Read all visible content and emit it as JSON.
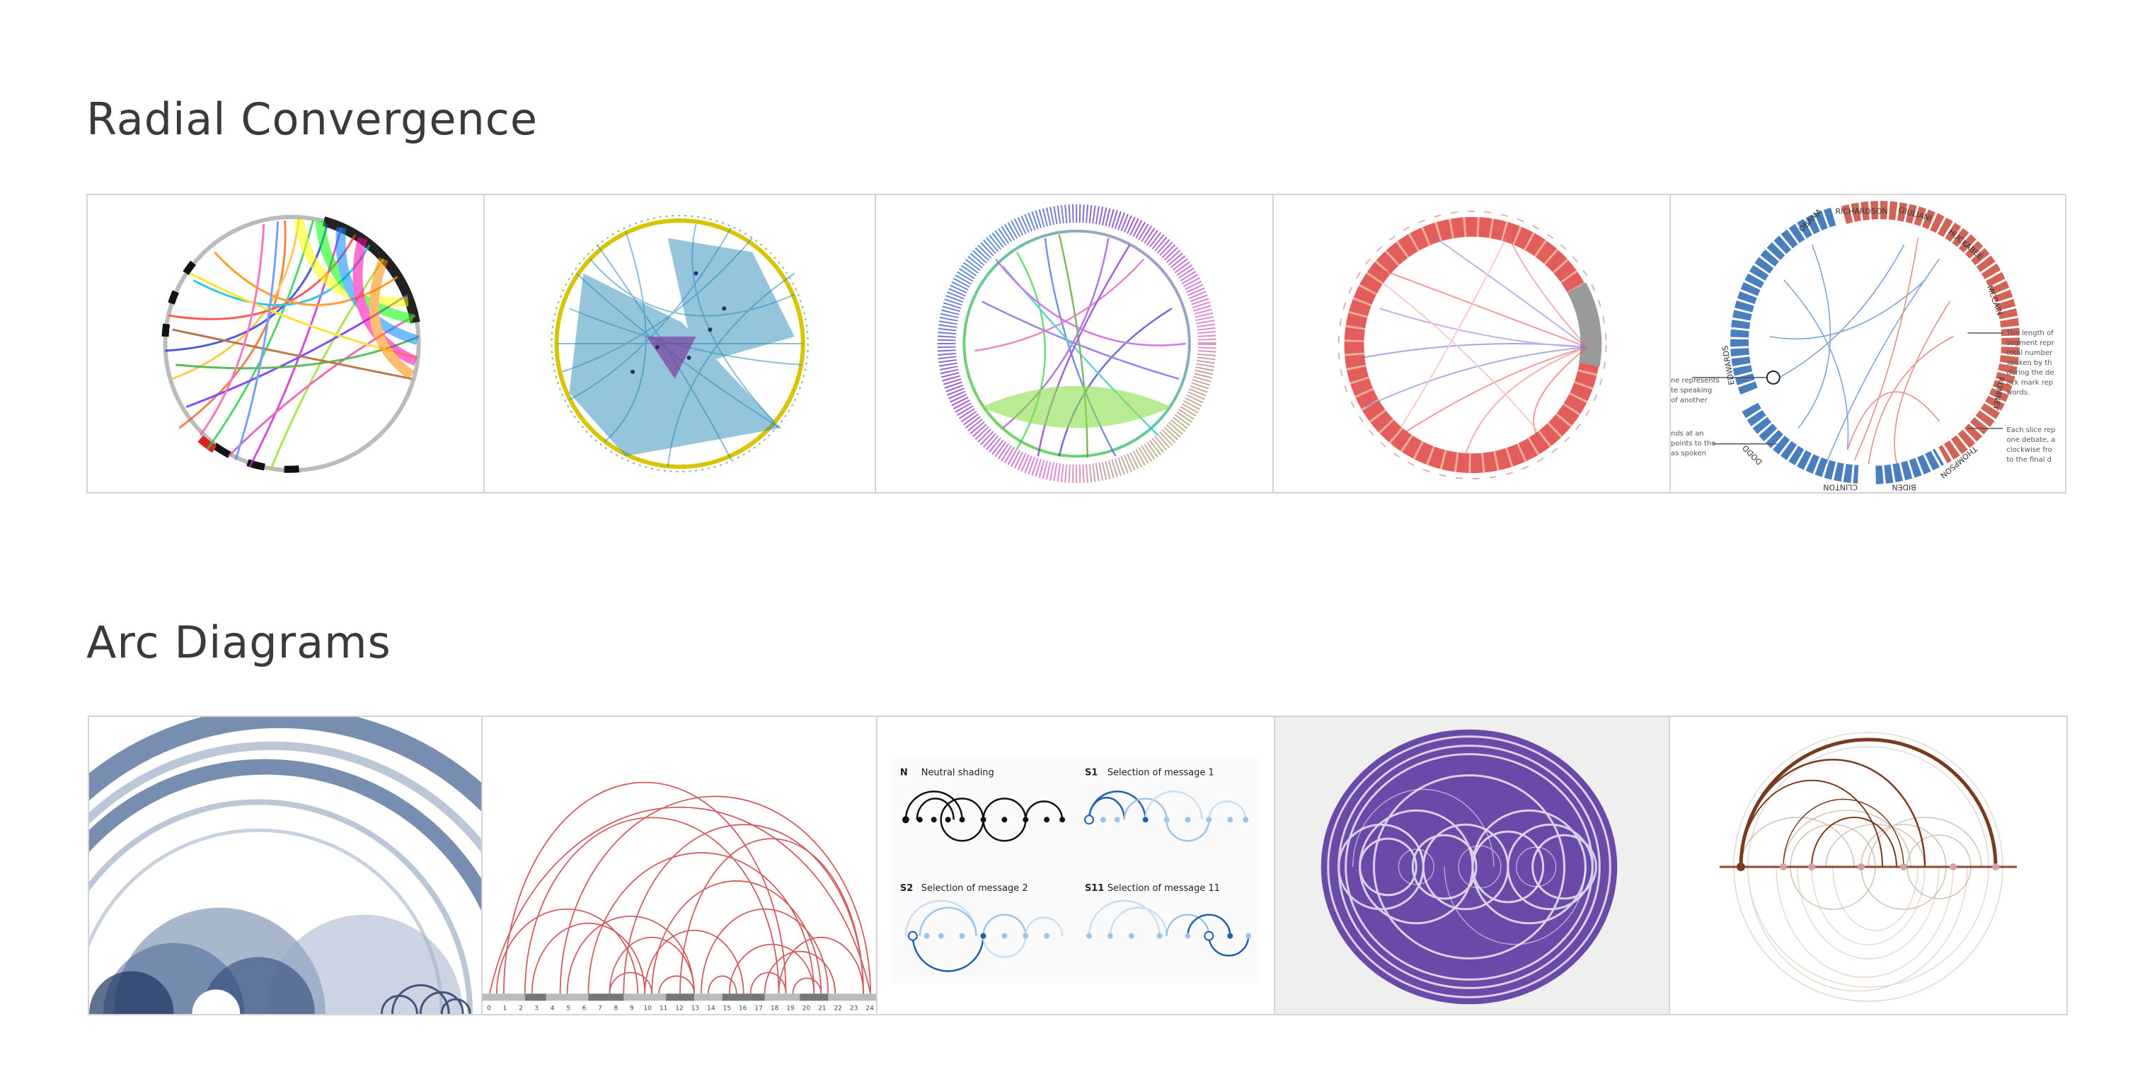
{
  "sections": [
    {
      "title": "Radial Convergence",
      "thumbnails": [
        {
          "name": "rainbow-chord-diagram"
        },
        {
          "name": "blue-network-circle"
        },
        {
          "name": "pastel-hierarchical-edge-bundle"
        },
        {
          "name": "red-ring-edge-bundle"
        },
        {
          "name": "debate-word-circle",
          "candidates": [
            "OBAMA",
            "RICHARDSON",
            "GIULIANI",
            "HUCKABEE",
            "MCCAIN",
            "ROMNEY",
            "THOMPSON",
            "BIDEN",
            "CLINTON",
            "DODD",
            "EDWARDS"
          ],
          "notes_left": [
            "ne represents",
            "te speaking",
            "of another",
            "nds at an",
            "points to the",
            "as spoken"
          ],
          "notes_right": [
            "The length of",
            "segment repr",
            "total number",
            "spoken by th",
            "during the de",
            "ack mark rep",
            "words.",
            "Each slice rep",
            "one debate, a",
            "clockwise fro",
            "to the final d"
          ]
        }
      ]
    },
    {
      "title": "Arc Diagrams",
      "thumbnails": [
        {
          "name": "navy-arc-diagram"
        },
        {
          "name": "red-arc-diagram",
          "axis_ticks": [
            "0",
            "1",
            "2",
            "3",
            "4",
            "5",
            "6",
            "7",
            "8",
            "9",
            "10",
            "11",
            "12",
            "13",
            "14",
            "15",
            "16",
            "17",
            "18",
            "19",
            "20",
            "21",
            "22",
            "23",
            "24"
          ]
        },
        {
          "name": "message-selection-arcs",
          "panels": [
            {
              "code": "N",
              "label": "Neutral shading"
            },
            {
              "code": "S1",
              "label": "Selection of message 1"
            },
            {
              "code": "S2",
              "label": "Selection of message 2"
            },
            {
              "code": "S11",
              "label": "Selection of message 11"
            }
          ]
        },
        {
          "name": "purple-arc-circle"
        },
        {
          "name": "brown-arc-diagram"
        }
      ]
    }
  ]
}
